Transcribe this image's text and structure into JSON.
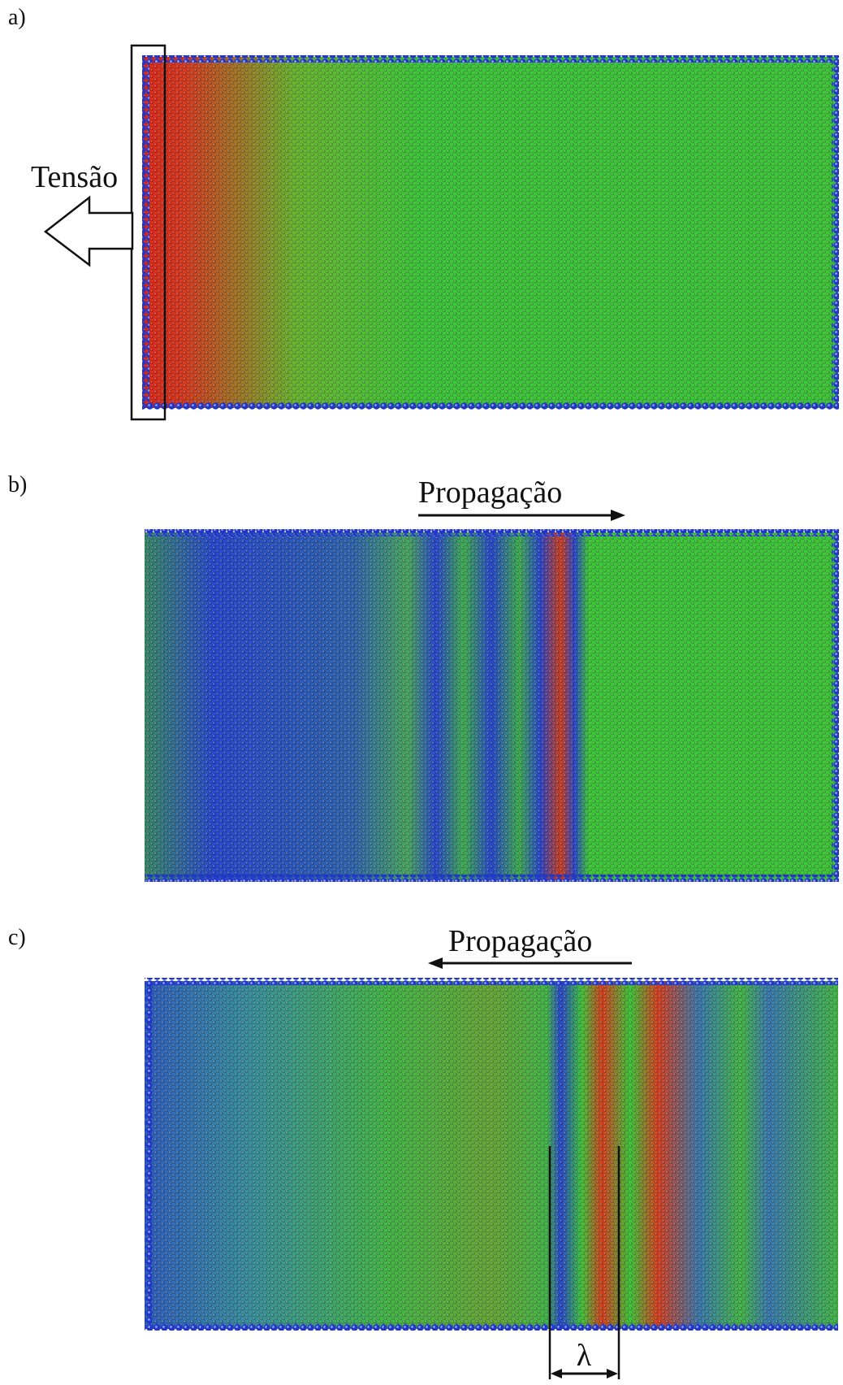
{
  "panels": [
    {
      "label": "a)",
      "annotation": "Tensão"
    },
    {
      "label": "b)",
      "annotation": "Propagação"
    },
    {
      "label": "c)",
      "annotation": "Propagação",
      "marker": "λ"
    }
  ]
}
